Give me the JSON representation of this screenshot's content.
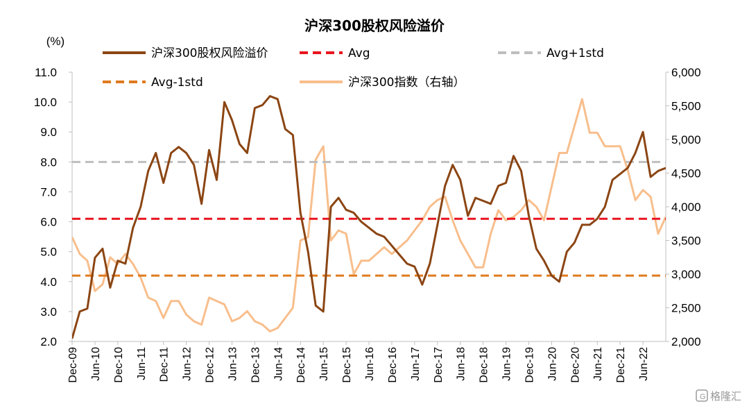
{
  "chart_data": {
    "type": "line",
    "title": "沪深300股权风险溢价",
    "ylabel_left": "(%)",
    "ylabel_right": "",
    "left_axis": {
      "ylim": [
        2.0,
        11.0
      ],
      "ticks": [
        "2.0",
        "3.0",
        "4.0",
        "5.0",
        "6.0",
        "7.0",
        "8.0",
        "9.0",
        "10.0",
        "11.0"
      ]
    },
    "right_axis": {
      "ylim": [
        2000,
        6000
      ],
      "ticks": [
        "2,000",
        "2,500",
        "3,000",
        "3,500",
        "4,000",
        "4,500",
        "5,000",
        "5,500",
        "6,000"
      ]
    },
    "x_range": [
      "2009-12",
      "2022-12"
    ],
    "x_ticks": [
      "Dec-09",
      "Jun-10",
      "Dec-10",
      "Jun-11",
      "Dec-11",
      "Jun-12",
      "Dec-12",
      "Jun-13",
      "Dec-13",
      "Jun-14",
      "Dec-14",
      "Jun-15",
      "Dec-15",
      "Jun-16",
      "Dec-16",
      "Jun-17",
      "Dec-17",
      "Jun-18",
      "Dec-18",
      "Jun-19",
      "Dec-19",
      "Jun-20",
      "Dec-20",
      "Jun-21",
      "Dec-21",
      "Jun-22"
    ],
    "grid": false,
    "legend_position": "top",
    "series": [
      {
        "name": "沪深300股权风险溢价",
        "axis": "left",
        "color": "#8B4513",
        "style": "solid",
        "x": [
          "2009-12",
          "2010-02",
          "2010-04",
          "2010-06",
          "2010-08",
          "2010-10",
          "2010-12",
          "2011-02",
          "2011-04",
          "2011-06",
          "2011-08",
          "2011-10",
          "2011-12",
          "2012-02",
          "2012-04",
          "2012-06",
          "2012-08",
          "2012-10",
          "2012-12",
          "2013-02",
          "2013-04",
          "2013-06",
          "2013-08",
          "2013-10",
          "2013-12",
          "2014-02",
          "2014-04",
          "2014-06",
          "2014-08",
          "2014-10",
          "2014-12",
          "2015-02",
          "2015-04",
          "2015-06",
          "2015-08",
          "2015-10",
          "2015-12",
          "2016-02",
          "2016-04",
          "2016-06",
          "2016-08",
          "2016-10",
          "2016-12",
          "2017-02",
          "2017-04",
          "2017-06",
          "2017-08",
          "2017-10",
          "2017-12",
          "2018-02",
          "2018-04",
          "2018-06",
          "2018-08",
          "2018-10",
          "2018-12",
          "2019-02",
          "2019-04",
          "2019-06",
          "2019-08",
          "2019-10",
          "2019-12",
          "2020-02",
          "2020-04",
          "2020-06",
          "2020-08",
          "2020-10",
          "2020-12",
          "2021-02",
          "2021-04",
          "2021-06",
          "2021-08",
          "2021-10",
          "2021-12",
          "2022-02",
          "2022-04",
          "2022-06",
          "2022-08",
          "2022-10",
          "2022-12"
        ],
        "values": [
          2.1,
          3.0,
          3.1,
          4.8,
          5.1,
          3.8,
          4.7,
          4.6,
          5.8,
          6.5,
          7.7,
          8.3,
          7.3,
          8.3,
          8.5,
          8.3,
          7.9,
          6.6,
          8.4,
          7.4,
          10.0,
          9.4,
          8.6,
          8.3,
          9.8,
          9.9,
          10.2,
          10.1,
          9.1,
          8.9,
          6.3,
          5.0,
          3.2,
          3.0,
          6.5,
          6.8,
          6.4,
          6.3,
          6.0,
          5.8,
          5.6,
          5.5,
          5.2,
          4.9,
          4.6,
          4.5,
          3.9,
          4.6,
          5.9,
          7.2,
          7.9,
          7.4,
          6.2,
          6.8,
          6.7,
          6.6,
          7.2,
          7.3,
          8.2,
          7.7,
          6.2,
          5.1,
          4.7,
          4.2,
          4.0,
          5.0,
          5.3,
          5.9,
          5.9,
          6.1,
          6.5,
          7.4,
          7.6,
          7.8,
          8.3,
          9.0,
          7.5,
          7.7,
          7.8
        ]
      },
      {
        "name": "Avg",
        "axis": "left",
        "color": "#E8141E",
        "style": "dashed",
        "value": 6.1
      },
      {
        "name": "Avg+1std",
        "axis": "left",
        "color": "#BEBEBE",
        "style": "dashed",
        "value": 8.0
      },
      {
        "name": "Avg-1std",
        "axis": "left",
        "color": "#E07A1E",
        "style": "dashed",
        "value": 4.2
      },
      {
        "name": "沪深300指数（右轴）",
        "axis": "right",
        "color": "#F8BE8C",
        "style": "solid",
        "x": [
          "2009-12",
          "2010-02",
          "2010-04",
          "2010-06",
          "2010-08",
          "2010-10",
          "2010-12",
          "2011-02",
          "2011-04",
          "2011-06",
          "2011-08",
          "2011-10",
          "2011-12",
          "2012-02",
          "2012-04",
          "2012-06",
          "2012-08",
          "2012-10",
          "2012-12",
          "2013-02",
          "2013-04",
          "2013-06",
          "2013-08",
          "2013-10",
          "2013-12",
          "2014-02",
          "2014-04",
          "2014-06",
          "2014-08",
          "2014-10",
          "2014-12",
          "2015-02",
          "2015-04",
          "2015-06",
          "2015-08",
          "2015-10",
          "2015-12",
          "2016-02",
          "2016-04",
          "2016-06",
          "2016-08",
          "2016-10",
          "2016-12",
          "2017-02",
          "2017-04",
          "2017-06",
          "2017-08",
          "2017-10",
          "2017-12",
          "2018-02",
          "2018-04",
          "2018-06",
          "2018-08",
          "2018-10",
          "2018-12",
          "2019-02",
          "2019-04",
          "2019-06",
          "2019-08",
          "2019-10",
          "2019-12",
          "2020-02",
          "2020-04",
          "2020-06",
          "2020-08",
          "2020-10",
          "2020-12",
          "2021-02",
          "2021-04",
          "2021-06",
          "2021-08",
          "2021-10",
          "2021-12",
          "2022-02",
          "2022-04",
          "2022-06",
          "2022-08",
          "2022-10",
          "2022-12"
        ],
        "values": [
          3550,
          3300,
          3200,
          2750,
          2850,
          3250,
          3150,
          3300,
          3150,
          2950,
          2650,
          2600,
          2350,
          2600,
          2600,
          2400,
          2300,
          2250,
          2650,
          2600,
          2550,
          2300,
          2350,
          2450,
          2300,
          2250,
          2150,
          2200,
          2350,
          2500,
          3500,
          3550,
          4700,
          4900,
          3500,
          3650,
          3600,
          3000,
          3200,
          3200,
          3300,
          3400,
          3300,
          3400,
          3500,
          3650,
          3800,
          4000,
          4100,
          4150,
          3800,
          3500,
          3300,
          3100,
          3100,
          3600,
          3950,
          3800,
          3850,
          3950,
          4100,
          4000,
          3800,
          4300,
          4800,
          4800,
          5200,
          5600,
          5100,
          5100,
          4900,
          4900,
          4900,
          4550,
          4100,
          4250,
          4150,
          3600,
          3850
        ]
      }
    ]
  },
  "watermark": "格隆汇"
}
